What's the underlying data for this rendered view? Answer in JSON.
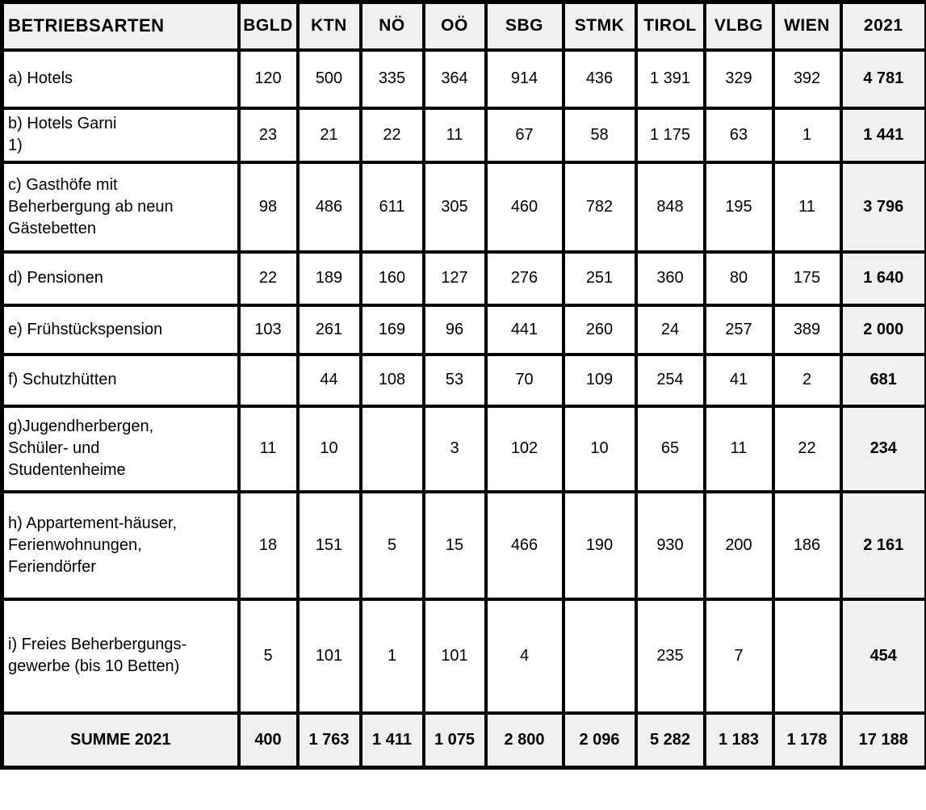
{
  "colors": {
    "grid": "#000000",
    "header_bg": "#f0f0f0",
    "cell_bg": "#ffffff",
    "total_col_bg": "#f0f0f0",
    "footer_bg": "#f0f0f0",
    "text": "#000000"
  },
  "table": {
    "columns": [
      "BETRIEBSARTEN",
      "BGLD",
      "KTN",
      "NÖ",
      "OÖ",
      "SBG",
      "STMK",
      "TIROL",
      "VLBG",
      "WIEN",
      "2021"
    ],
    "rows": [
      {
        "label_lines": [
          "a) Hotels"
        ],
        "values": [
          "120",
          "500",
          "335",
          "364",
          "914",
          "436",
          "1 391",
          "329",
          "392"
        ],
        "total": "4 781"
      },
      {
        "label_lines": [
          "b) Hotels Garni",
          "1)"
        ],
        "values": [
          "23",
          "21",
          "22",
          "11",
          "67",
          "58",
          "1 175",
          "63",
          "1"
        ],
        "total": "1 441"
      },
      {
        "label_lines": [
          "c) Gasthöfe mit",
          "Beherbergung ab neun",
          "Gästebetten"
        ],
        "values": [
          "98",
          "486",
          "611",
          "305",
          "460",
          "782",
          "848",
          "195",
          "11"
        ],
        "total": "3 796"
      },
      {
        "label_lines": [
          "d) Pensionen"
        ],
        "values": [
          "22",
          "189",
          "160",
          "127",
          "276",
          "251",
          "360",
          "80",
          "175"
        ],
        "total": "1 640"
      },
      {
        "label_lines": [
          "e) Frühstückspension"
        ],
        "values": [
          "103",
          "261",
          "169",
          "96",
          "441",
          "260",
          "24",
          "257",
          "389"
        ],
        "total": "2 000"
      },
      {
        "label_lines": [
          "f) Schutzhütten"
        ],
        "values": [
          "",
          "44",
          "108",
          "53",
          "70",
          "109",
          "254",
          "41",
          "2"
        ],
        "total": "681"
      },
      {
        "label_lines": [
          "g)Jugendherbergen,",
          "Schüler- und",
          "Studentenheime"
        ],
        "values": [
          "11",
          "10",
          "",
          "3",
          "102",
          "10",
          "65",
          "11",
          "22"
        ],
        "total": "234"
      },
      {
        "label_lines": [
          "h) Appartement-häuser,",
          "Ferienwohnungen,",
          "Feriendörfer"
        ],
        "values": [
          "18",
          "151",
          "5",
          "15",
          "466",
          "190",
          "930",
          "200",
          "186"
        ],
        "total": "2 161"
      },
      {
        "label_lines": [
          "i) Freies Beherbergungs-",
          "gewerbe (bis 10 Betten)"
        ],
        "values": [
          "5",
          "101",
          "1",
          "101",
          "4",
          "",
          "235",
          "7",
          ""
        ],
        "total": "454"
      }
    ],
    "footer": {
      "label": "SUMME 2021",
      "values": [
        "400",
        "1 763",
        "1 411",
        "1 075",
        "2 800",
        "2 096",
        "5 282",
        "1 183",
        "1 178"
      ],
      "total": "17 188"
    }
  }
}
